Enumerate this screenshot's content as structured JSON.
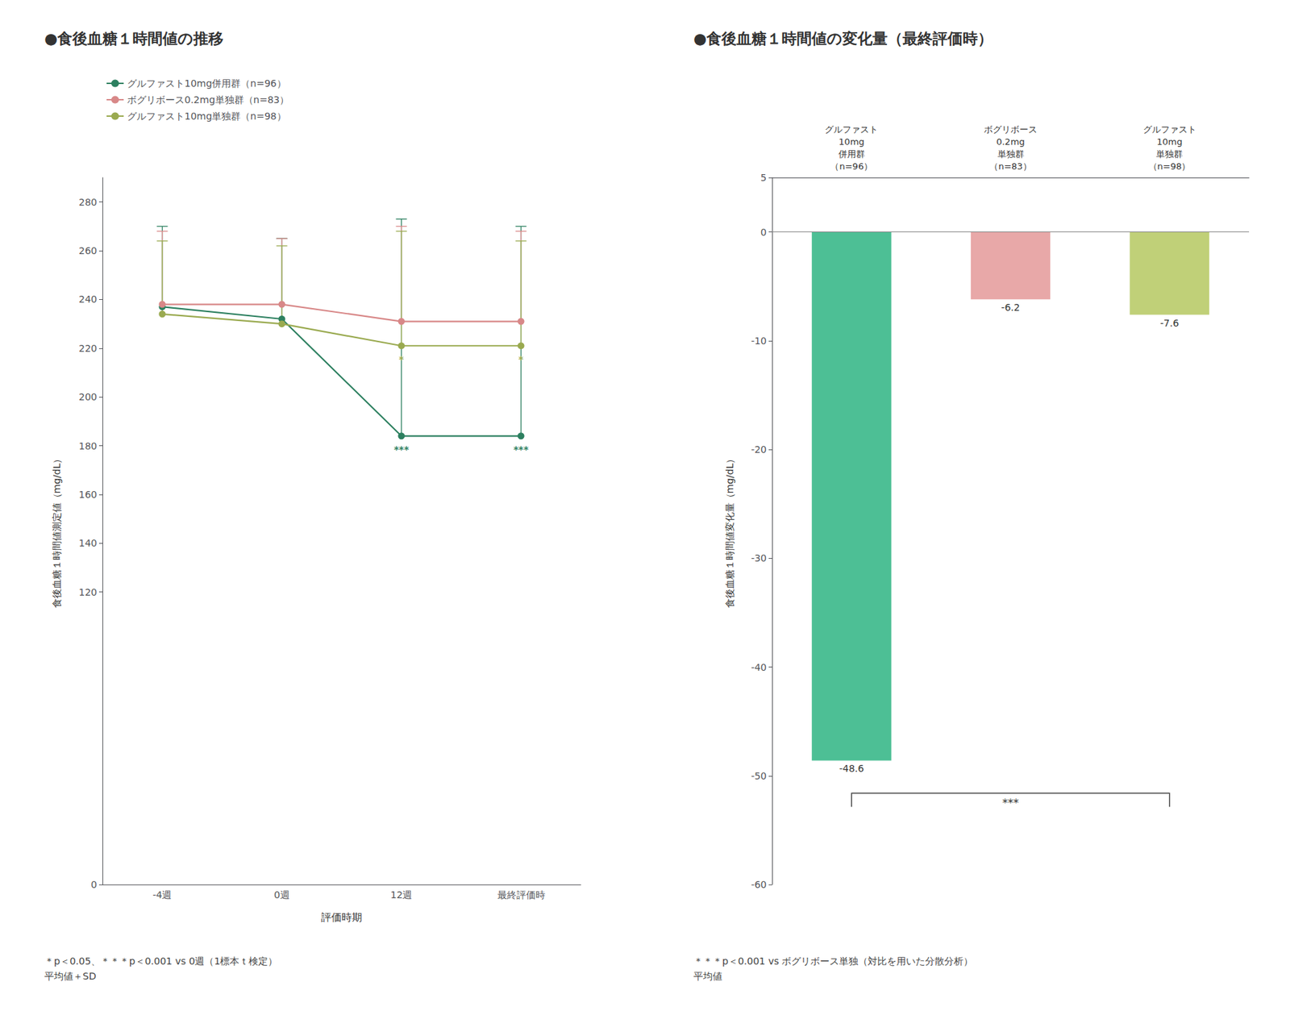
{
  "chart_data": [
    {
      "type": "line",
      "title": "●食後血糖１時間値の推移",
      "x_label": "評価時期",
      "y_label": "食後血糖１時間値測定値（mg/dL）",
      "categories": [
        "-4週",
        "0週",
        "12週",
        "最終評価時"
      ],
      "ylim": [
        0,
        290
      ],
      "yticks": [
        0,
        120,
        140,
        160,
        180,
        200,
        220,
        240,
        260,
        280
      ],
      "grid": false,
      "legend": "upper left",
      "series": [
        {
          "name": "グルファスト10mg併用群（n=96）",
          "color": "#2d8060",
          "marker": "circle",
          "values": [
            237,
            232,
            184,
            184
          ],
          "sd_upper": [
            270,
            265,
            273,
            270
          ],
          "point_labels": [
            null,
            null,
            "***",
            "***"
          ]
        },
        {
          "name": "ボグリボース0.2mg単独群（n=83）",
          "color": "#d88888",
          "marker": "circle",
          "values": [
            238,
            238,
            231,
            231
          ],
          "sd_upper": [
            268,
            265,
            270,
            268
          ]
        },
        {
          "name": "グルファスト10mg単独群（n=98）",
          "color": "#9aaa50",
          "marker": "circle",
          "values": [
            234,
            230,
            221,
            221
          ],
          "sd_upper": [
            264,
            262,
            268,
            264
          ],
          "point_labels": [
            null,
            null,
            "*",
            "*"
          ]
        }
      ],
      "footnote": "＊p＜0.05、＊＊＊p＜0.001 vs 0週（1標本ｔ検定）\n平均値＋SD"
    },
    {
      "type": "bar",
      "title": "●食後血糖１時間値の変化量（最終評価時）",
      "y_label": "食後血糖１時間値変化量（mg/dL）",
      "categories": [
        "グルファスト\n10mg\n併用群\n（n=96）",
        "ボグリボース\n0.2mg\n単独群\n（n=83）",
        "グルファスト\n10mg\n単独群\n（n=98）"
      ],
      "values": [
        -48.6,
        -6.2,
        -7.6
      ],
      "colors": [
        "#4dbf95",
        "#e8a8a8",
        "#c0d078"
      ],
      "ylim": [
        -60,
        5
      ],
      "yticks": [
        0,
        -10,
        -20,
        -30,
        -40,
        -50,
        -60
      ],
      "grid": false,
      "data_labels": true,
      "annotations": [
        {
          "text": "***",
          "between": [
            "グルファスト\n10mg\n併用群\n（n=96）",
            "グルファスト\n10mg\n単独群\n（n=98）"
          ]
        }
      ],
      "footnote": "＊＊＊p＜0.001 vs ボグリボース単独（対比を用いた分散分析）\n平均値"
    }
  ]
}
